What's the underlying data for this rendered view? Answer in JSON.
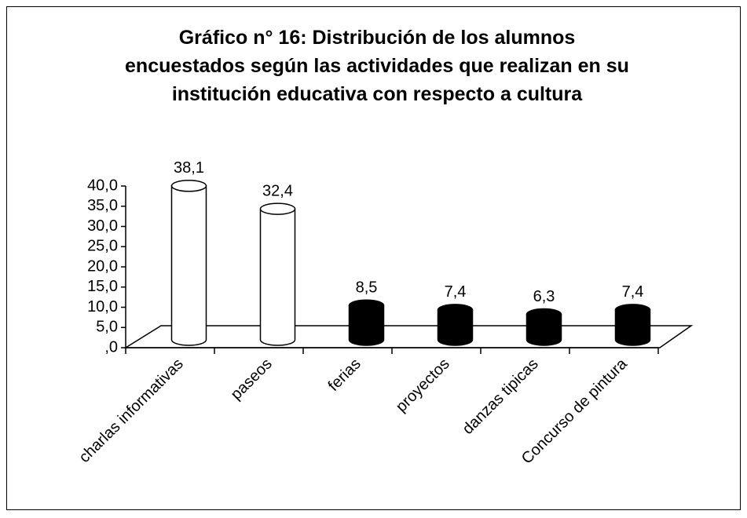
{
  "chart_data": {
    "type": "bar3d",
    "title": "Gráfico n° 16: Distribución de los alumnos encuestados según las actividades que realizan en su institución educativa con respecto a cultura",
    "categories": [
      "charlas informativas",
      "paseos",
      "ferias",
      "proyectos",
      "danzas tipicas",
      "Concurso de pintura"
    ],
    "values": [
      38.1,
      32.4,
      8.5,
      7.4,
      6.3,
      7.4
    ],
    "value_labels": [
      "38,1",
      "32,4",
      "8,5",
      "7,4",
      "6,3",
      "7,4"
    ],
    "colors": [
      "#ffffff",
      "#ffffff",
      "#000000",
      "#000000",
      "#000000",
      "#000000"
    ],
    "ylim": [
      0,
      40
    ],
    "yticks": [
      {
        "value": 0,
        "label": ",0"
      },
      {
        "value": 5,
        "label": "5,0"
      },
      {
        "value": 10,
        "label": "10,0"
      },
      {
        "value": 15,
        "label": "15,0"
      },
      {
        "value": 20,
        "label": "20,0"
      },
      {
        "value": 25,
        "label": "25,0"
      },
      {
        "value": 30,
        "label": "30,0"
      },
      {
        "value": 35,
        "label": "35,0"
      },
      {
        "value": 40,
        "label": "40,0"
      }
    ]
  }
}
